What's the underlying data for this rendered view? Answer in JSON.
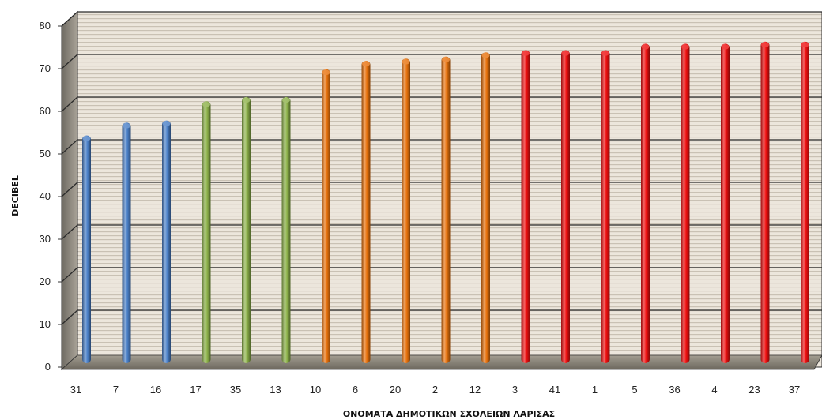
{
  "chart_data": {
    "type": "bar",
    "title": "",
    "xlabel": "ΟΝΟΜΑΤΑ ΔΗΜΟΤΙΚΩΝ  ΣΧΟΛΕΙΩΝ ΛΑΡΙΣΑΣ",
    "ylabel": "DECIBEL",
    "ylim": [
      0,
      80
    ],
    "yticks": [
      0,
      10,
      20,
      30,
      40,
      50,
      60,
      70,
      80
    ],
    "grid": true,
    "legend": "none",
    "style": "3d-cylinder",
    "categories": [
      "31",
      "7",
      "16",
      "17",
      "35",
      "13",
      "10",
      "6",
      "20",
      "2",
      "12",
      "3",
      "41",
      "1",
      "5",
      "36",
      "4",
      "23",
      "37"
    ],
    "values": [
      52.5,
      55.5,
      56,
      60.5,
      61.5,
      61.5,
      68,
      70,
      70.5,
      71,
      72,
      72.5,
      72.5,
      72.5,
      74,
      74,
      74,
      74.5,
      74.5
    ],
    "bar_colors": [
      "#4a80c8",
      "#4a80c8",
      "#4a80c8",
      "#8db24a",
      "#8db24a",
      "#8db24a",
      "#e8720c",
      "#e8720c",
      "#e8720c",
      "#e8720c",
      "#e8720c",
      "#f01010",
      "#f01010",
      "#f01010",
      "#f01010",
      "#f01010",
      "#f01010",
      "#f01010",
      "#f01010"
    ]
  }
}
